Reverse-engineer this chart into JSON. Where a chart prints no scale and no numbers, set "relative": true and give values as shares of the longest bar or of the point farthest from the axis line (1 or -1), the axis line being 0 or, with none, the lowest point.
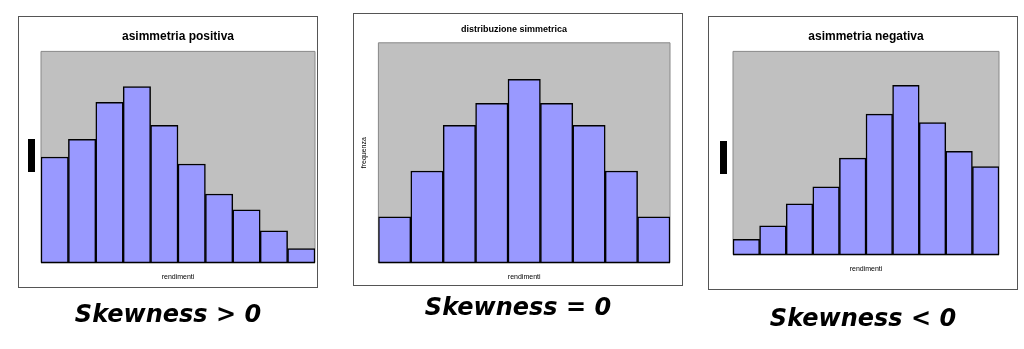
{
  "chart_data": [
    {
      "type": "bar",
      "title": "asimmetria positiva",
      "xlabel": "rendimenti",
      "relative": true,
      "categories": [
        null,
        null,
        null,
        null,
        null,
        null,
        null,
        null,
        null,
        null
      ],
      "color": "#9999ff",
      "values": [
        0.6,
        0.7,
        0.91,
        1,
        0.78,
        0.56,
        0.39,
        0.3,
        0.18,
        0.08
      ],
      "annotations": [
        "Skewness > 0"
      ]
    },
    {
      "type": "bar",
      "title": "distribuzione simmetrica",
      "xlabel": "rendimenti",
      "ylabel": "frequenza",
      "relative": true,
      "categories": [
        null,
        null,
        null,
        null,
        null,
        null,
        null,
        null,
        null
      ],
      "color": "#9999ff",
      "values": [
        0.25,
        0.5,
        0.75,
        0.87,
        1,
        0.87,
        0.75,
        0.5,
        0.25
      ],
      "annotations": [
        "Skewness = 0"
      ]
    },
    {
      "type": "bar",
      "title": "asimmetria negativa",
      "xlabel": "rendimenti",
      "relative": true,
      "categories": [
        null,
        null,
        null,
        null,
        null,
        null,
        null,
        null,
        null,
        null
      ],
      "color": "#9999ff",
      "values": [
        0.09,
        0.17,
        0.3,
        0.4,
        0.57,
        0.83,
        1,
        0.78,
        0.61,
        0.52
      ],
      "annotations": [
        "Skewness < 0"
      ]
    }
  ]
}
